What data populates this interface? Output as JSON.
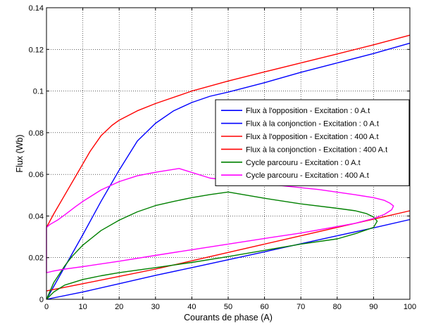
{
  "chart_data": {
    "type": "line",
    "title": "",
    "xlabel": "Courants de phase (A)",
    "ylabel": "Flux (Wb)",
    "xlim": [
      0,
      100
    ],
    "ylim": [
      0,
      0.14
    ],
    "xticks": [
      0,
      10,
      20,
      30,
      40,
      50,
      60,
      70,
      80,
      90,
      100
    ],
    "yticks": [
      0,
      0.02,
      0.04,
      0.06,
      0.08,
      0.1,
      0.12,
      0.14
    ],
    "xtick_labels": [
      "0",
      "10",
      "20",
      "30",
      "40",
      "50",
      "60",
      "70",
      "80",
      "90",
      "100"
    ],
    "ytick_labels": [
      "0",
      "0.02",
      "0.04",
      "0.06",
      "0.08",
      "0.1",
      "0.12",
      "0.14"
    ],
    "grid": true,
    "grid_style": "dotted",
    "legend_position": "center-right",
    "series": [
      {
        "name": "Flux à l'opposition - Excitation : 0 A.t",
        "color": "#0000ff",
        "x": [
          0,
          10,
          20,
          30,
          40,
          50,
          60,
          70,
          80,
          90,
          100
        ],
        "y": [
          0,
          0.0035,
          0.0075,
          0.0115,
          0.0152,
          0.019,
          0.0228,
          0.0267,
          0.0305,
          0.0343,
          0.0383
        ]
      },
      {
        "name": "Flux à la conjonction - Excitation : 0 A.t",
        "color": "#0000ff",
        "x": [
          0,
          5,
          10,
          15,
          20,
          25,
          30,
          35,
          40,
          45,
          50,
          60,
          70,
          80,
          90,
          100
        ],
        "y": [
          0,
          0.0155,
          0.031,
          0.047,
          0.062,
          0.076,
          0.0845,
          0.0905,
          0.0945,
          0.0975,
          0.0995,
          0.104,
          0.109,
          0.1135,
          0.118,
          0.123
        ]
      },
      {
        "name": "Flux à l'opposition - Excitation : 400 A.t",
        "color": "#ff0000",
        "x": [
          0,
          10,
          20,
          30,
          40,
          50,
          60,
          70,
          80,
          90,
          100
        ],
        "y": [
          0.004,
          0.0075,
          0.011,
          0.0145,
          0.0185,
          0.0225,
          0.0265,
          0.0305,
          0.0345,
          0.0385,
          0.0425
        ]
      },
      {
        "name": "Flux à la conjonction - Excitation : 400 A.t",
        "color": "#ff0000",
        "x": [
          0,
          2,
          5,
          8,
          10,
          12,
          15,
          18,
          20,
          25,
          30,
          40,
          50,
          60,
          70,
          80,
          90,
          100
        ],
        "y": [
          0.0345,
          0.041,
          0.05,
          0.059,
          0.065,
          0.071,
          0.0785,
          0.0835,
          0.086,
          0.0905,
          0.094,
          0.1,
          0.1048,
          0.1092,
          0.1135,
          0.1178,
          0.1222,
          0.1268
        ]
      },
      {
        "name": "Cycle parcouru - Excitation : 0 A.t",
        "color": "#008000",
        "x": [
          0,
          2,
          5,
          7,
          10,
          15,
          20,
          25,
          30,
          35,
          40,
          45,
          50,
          60,
          70,
          80,
          85,
          88,
          90,
          91,
          90,
          85,
          80,
          70,
          60,
          50,
          40,
          30,
          20,
          15,
          10,
          5,
          2,
          0
        ],
        "y": [
          0,
          0.008,
          0.016,
          0.0205,
          0.026,
          0.033,
          0.038,
          0.042,
          0.045,
          0.047,
          0.0488,
          0.0503,
          0.0515,
          0.0485,
          0.0458,
          0.0437,
          0.0425,
          0.0412,
          0.0395,
          0.0375,
          0.0345,
          0.0315,
          0.029,
          0.0265,
          0.0235,
          0.0205,
          0.0177,
          0.0152,
          0.0128,
          0.0113,
          0.0095,
          0.0068,
          0.0035,
          0
        ]
      },
      {
        "name": "Cycle parcouru - Excitation : 400 A.t",
        "color": "#ff00ff",
        "x": [
          0,
          1,
          3,
          5,
          8,
          10,
          15,
          20,
          25,
          30,
          36.5,
          45,
          55,
          65,
          75,
          85,
          90,
          93,
          94.5,
          95.5,
          95,
          93,
          90,
          85,
          80,
          70,
          60,
          50,
          40,
          30,
          20,
          10,
          5,
          2,
          0.5,
          0,
          0
        ],
        "y": [
          0.0345,
          0.036,
          0.038,
          0.0405,
          0.0445,
          0.047,
          0.0525,
          0.0565,
          0.0593,
          0.061,
          0.0628,
          0.0582,
          0.0562,
          0.0545,
          0.0527,
          0.0502,
          0.0488,
          0.0475,
          0.0462,
          0.0448,
          0.043,
          0.0408,
          0.0388,
          0.0365,
          0.0349,
          0.0318,
          0.0292,
          0.0265,
          0.0238,
          0.0211,
          0.0183,
          0.0157,
          0.0145,
          0.0136,
          0.013,
          0.0128,
          0.0345
        ]
      }
    ]
  }
}
